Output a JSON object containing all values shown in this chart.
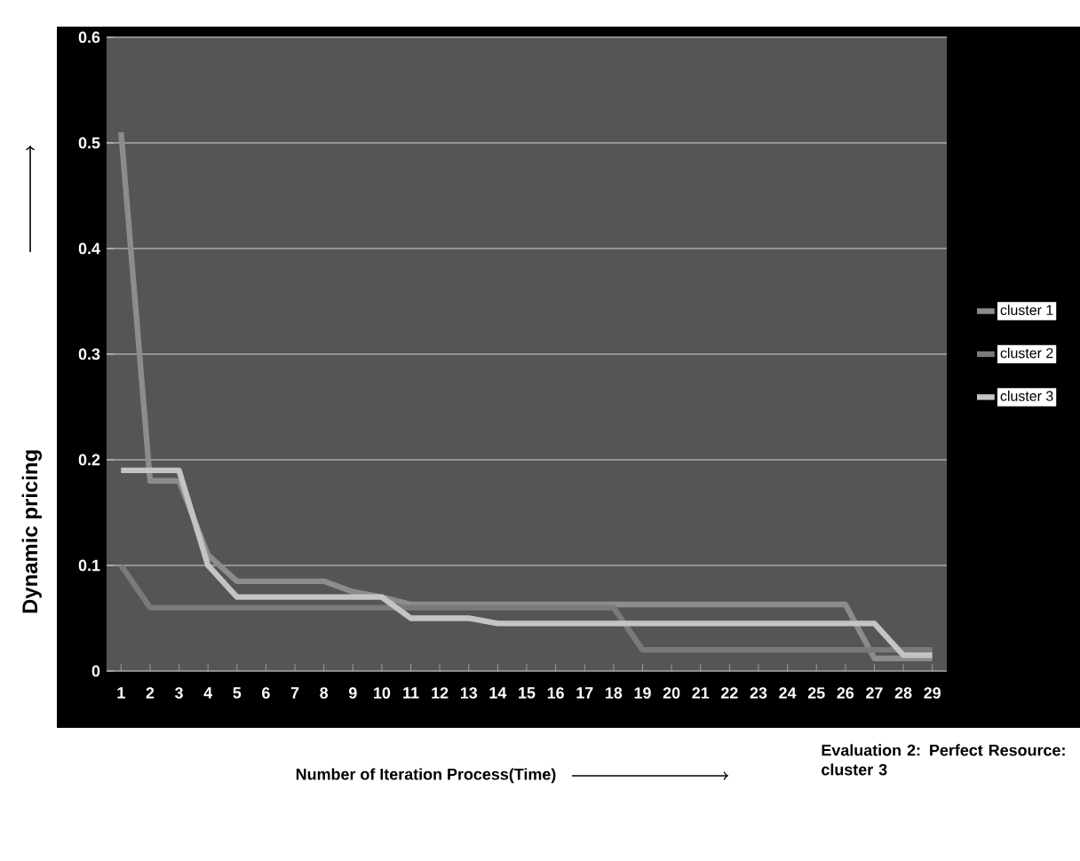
{
  "chart_data": {
    "type": "line",
    "xlabel": "Number of Iteration Process(Time)",
    "ylabel": "Dynamic pricing",
    "categories": [
      "1",
      "2",
      "3",
      "4",
      "5",
      "6",
      "7",
      "8",
      "9",
      "10",
      "11",
      "12",
      "13",
      "14",
      "15",
      "16",
      "17",
      "18",
      "19",
      "20",
      "21",
      "22",
      "23",
      "24",
      "25",
      "26",
      "27",
      "28",
      "29"
    ],
    "series": [
      {
        "name": "cluster 1",
        "color": "#8c8c8c",
        "values": [
          0.51,
          0.18,
          0.18,
          0.11,
          0.085,
          0.085,
          0.085,
          0.085,
          0.075,
          0.07,
          0.063,
          0.063,
          0.063,
          0.063,
          0.063,
          0.063,
          0.063,
          0.063,
          0.063,
          0.063,
          0.063,
          0.063,
          0.063,
          0.063,
          0.063,
          0.063,
          0.012,
          0.012,
          0.012
        ]
      },
      {
        "name": "cluster 2",
        "color": "#7a7a7a",
        "values": [
          0.1,
          0.06,
          0.06,
          0.06,
          0.06,
          0.06,
          0.06,
          0.06,
          0.06,
          0.06,
          0.06,
          0.06,
          0.06,
          0.06,
          0.06,
          0.06,
          0.06,
          0.06,
          0.02,
          0.02,
          0.02,
          0.02,
          0.02,
          0.02,
          0.02,
          0.02,
          0.02,
          0.02,
          0.02
        ]
      },
      {
        "name": "cluster 3",
        "color": "#c4c4c4",
        "values": [
          0.19,
          0.19,
          0.19,
          0.1,
          0.07,
          0.07,
          0.07,
          0.07,
          0.07,
          0.07,
          0.05,
          0.05,
          0.05,
          0.045,
          0.045,
          0.045,
          0.045,
          0.045,
          0.045,
          0.045,
          0.045,
          0.045,
          0.045,
          0.045,
          0.045,
          0.045,
          0.045,
          0.015,
          0.015
        ]
      }
    ],
    "ylim": [
      0,
      0.6
    ],
    "yticks": [
      0,
      0.1,
      0.2,
      0.3,
      0.4,
      0.5,
      0.6
    ],
    "grid": "y",
    "legend": "right",
    "marker": "none",
    "line_style": "solid",
    "annotations": [
      "Evaluation 2: Perfect Resource: cluster 3"
    ]
  }
}
